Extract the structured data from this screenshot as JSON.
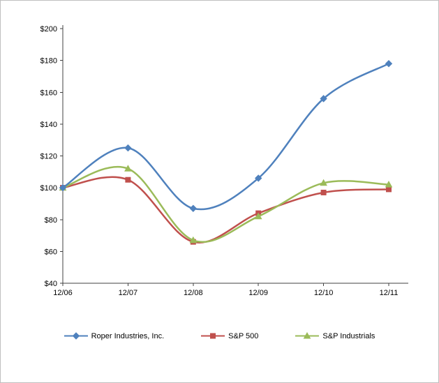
{
  "chart_data": {
    "type": "line",
    "categories": [
      "12/06",
      "12/07",
      "12/08",
      "12/09",
      "12/10",
      "12/11"
    ],
    "series": [
      {
        "name": "Roper Industries, Inc.",
        "color": "#4F81BD",
        "marker": "diamond",
        "values": [
          100,
          125,
          87,
          106,
          156,
          178
        ]
      },
      {
        "name": "S&P 500",
        "color": "#C0504D",
        "marker": "square",
        "values": [
          100,
          105,
          66,
          84,
          97,
          99
        ]
      },
      {
        "name": "S&P Industrials",
        "color": "#9BBB59",
        "marker": "triangle",
        "values": [
          100,
          112,
          67,
          82,
          103,
          102
        ]
      }
    ],
    "ylim": [
      40,
      200
    ],
    "ytick_step": 20,
    "ytick_labels": [
      "$40",
      "$60",
      "$80",
      "$100",
      "$120",
      "$140",
      "$160",
      "$180",
      "$200"
    ],
    "xlabel": "",
    "ylabel": "",
    "title": "",
    "grid": false,
    "smoothed_lines": true,
    "legend_position": "bottom",
    "axis_color": "#404040",
    "background_color": "#ffffff"
  }
}
